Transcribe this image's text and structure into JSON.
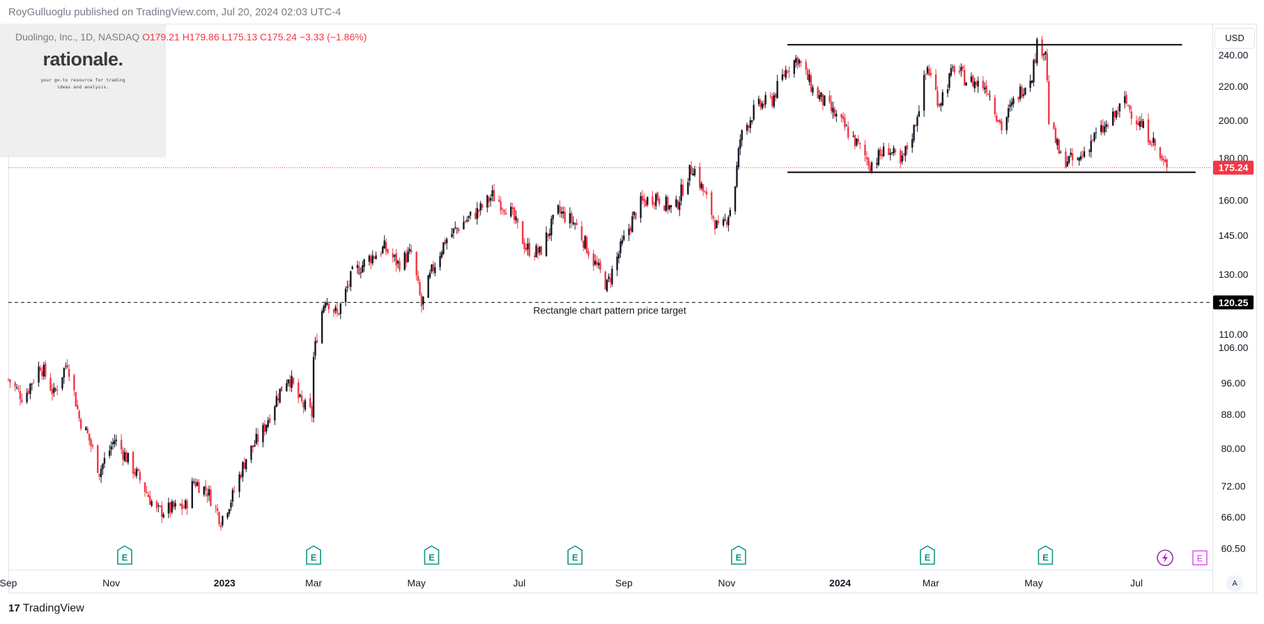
{
  "publisher_line": "RoyGulluoglu published on TradingView.com, Jul 20, 2024 02:03 UTC-4",
  "legend": {
    "symbol": "Duolingo, Inc., 1D, NASDAQ",
    "open": "O179.21",
    "high": "H179.86",
    "low": "L175.13",
    "close": "C175.24",
    "change": "−3.33 (−1.86%)"
  },
  "logo": {
    "word": "rationale.",
    "tagline": "your go-to resource for trading ideas and analysis."
  },
  "currency_button": "USD",
  "auto_scale": "A",
  "brand": {
    "mark": "17",
    "name": "TradingView"
  },
  "colors": {
    "up": "#131722",
    "down": "#f23645",
    "earnings": "#089981",
    "dividend": "#e040fb"
  },
  "chart_data": {
    "type": "candlestick",
    "x_range": [
      "2022-09-01",
      "2024-08-15"
    ],
    "y_range": [
      57,
      262
    ],
    "y_scale": "log",
    "price_axis_ticks": [
      "240.00",
      "220.00",
      "200.00",
      "180.00",
      "160.00",
      "145.00",
      "130.00",
      "110.00",
      "106.00",
      "96.00",
      "88.00",
      "80.00",
      "72.00",
      "66.00",
      "60.50"
    ],
    "time_axis_labels": [
      {
        "label": "Sep",
        "date": "2022-09-01"
      },
      {
        "label": "Nov",
        "date": "2022-11-01"
      },
      {
        "label": "2023",
        "date": "2023-01-01",
        "bold": true
      },
      {
        "label": "Mar",
        "date": "2023-03-01"
      },
      {
        "label": "May",
        "date": "2023-05-01"
      },
      {
        "label": "Jul",
        "date": "2023-07-01"
      },
      {
        "label": "Sep",
        "date": "2023-09-01"
      },
      {
        "label": "Nov",
        "date": "2023-11-01"
      },
      {
        "label": "2024",
        "date": "2024-01-01",
        "bold": true
      },
      {
        "label": "Mar",
        "date": "2024-03-01"
      },
      {
        "label": "May",
        "date": "2024-05-01"
      },
      {
        "label": "Jul",
        "date": "2024-07-01"
      }
    ],
    "price_path": [
      [
        "2022-09-01",
        97
      ],
      [
        "2022-09-10",
        92
      ],
      [
        "2022-09-20",
        101
      ],
      [
        "2022-09-28",
        93
      ],
      [
        "2022-10-06",
        102
      ],
      [
        "2022-10-13",
        87
      ],
      [
        "2022-10-18",
        83
      ],
      [
        "2022-10-25",
        75
      ],
      [
        "2022-11-03",
        82
      ],
      [
        "2022-11-10",
        78
      ],
      [
        "2022-11-20",
        72
      ],
      [
        "2022-11-28",
        67
      ],
      [
        "2022-12-06",
        67.5
      ],
      [
        "2022-12-15",
        68
      ],
      [
        "2022-12-20",
        73
      ],
      [
        "2022-12-28",
        71
      ],
      [
        "2023-01-05",
        65.5
      ],
      [
        "2023-01-12",
        70
      ],
      [
        "2023-01-20",
        78
      ],
      [
        "2023-01-30",
        84
      ],
      [
        "2023-02-08",
        93
      ],
      [
        "2023-02-14",
        98
      ],
      [
        "2023-02-21",
        91
      ],
      [
        "2023-02-28",
        88
      ],
      [
        "2023-03-01",
        103
      ],
      [
        "2023-03-04",
        113
      ],
      [
        "2023-03-08",
        122
      ],
      [
        "2023-03-15",
        116
      ],
      [
        "2023-03-24",
        130
      ],
      [
        "2023-04-03",
        136
      ],
      [
        "2023-04-12",
        140
      ],
      [
        "2023-04-20",
        134
      ],
      [
        "2023-04-28",
        138
      ],
      [
        "2023-05-04",
        119
      ],
      [
        "2023-05-10",
        131
      ],
      [
        "2023-05-18",
        143
      ],
      [
        "2023-05-28",
        150
      ],
      [
        "2023-06-08",
        156
      ],
      [
        "2023-06-15",
        162
      ],
      [
        "2023-06-25",
        156
      ],
      [
        "2023-07-05",
        140
      ],
      [
        "2023-07-13",
        138
      ],
      [
        "2023-07-24",
        155
      ],
      [
        "2023-08-03",
        150
      ],
      [
        "2023-08-14",
        135
      ],
      [
        "2023-08-22",
        126
      ],
      [
        "2023-09-01",
        143
      ],
      [
        "2023-09-10",
        158
      ],
      [
        "2023-09-20",
        162
      ],
      [
        "2023-10-01",
        155
      ],
      [
        "2023-10-08",
        170
      ],
      [
        "2023-10-12",
        176
      ],
      [
        "2023-10-18",
        164
      ],
      [
        "2023-10-28",
        145
      ],
      [
        "2023-11-05",
        160
      ],
      [
        "2023-11-09",
        190
      ],
      [
        "2023-11-18",
        207
      ],
      [
        "2023-11-28",
        212
      ],
      [
        "2023-12-07",
        232
      ],
      [
        "2023-12-13",
        238
      ],
      [
        "2023-12-22",
        218
      ],
      [
        "2024-01-04",
        203
      ],
      [
        "2024-01-15",
        190
      ],
      [
        "2024-01-25",
        177
      ],
      [
        "2024-02-05",
        185
      ],
      [
        "2024-02-12",
        176
      ],
      [
        "2024-02-20",
        195
      ],
      [
        "2024-02-28",
        232
      ],
      [
        "2024-03-06",
        210
      ],
      [
        "2024-03-15",
        232
      ],
      [
        "2024-03-22",
        224
      ],
      [
        "2024-04-03",
        220
      ],
      [
        "2024-04-12",
        196
      ],
      [
        "2024-04-20",
        212
      ],
      [
        "2024-04-30",
        228
      ],
      [
        "2024-05-03",
        246
      ],
      [
        "2024-05-08",
        244
      ],
      [
        "2024-05-10",
        200
      ],
      [
        "2024-05-17",
        180
      ],
      [
        "2024-05-27",
        178
      ],
      [
        "2024-06-05",
        190
      ],
      [
        "2024-06-15",
        198
      ],
      [
        "2024-06-24",
        211
      ],
      [
        "2024-07-03",
        198
      ],
      [
        "2024-07-10",
        190
      ],
      [
        "2024-07-16",
        178
      ],
      [
        "2024-07-19",
        175.24
      ]
    ],
    "drawings": [
      {
        "kind": "horizontal-segment",
        "price": 247,
        "from": "2023-12-07",
        "to": "2024-07-28",
        "color": "#000000",
        "style": "solid"
      },
      {
        "kind": "horizontal-segment",
        "price": 173,
        "from": "2023-12-07",
        "to": "2024-08-05",
        "color": "#000000",
        "style": "solid"
      },
      {
        "kind": "horizontal-line",
        "price": 120.25,
        "color": "#000000",
        "style": "dashed",
        "text": "Rectangle chart pattern price target"
      }
    ],
    "last_price": {
      "price": 175.24,
      "label": "175.24",
      "color": "#f23645"
    },
    "target_price": {
      "price": 120.25,
      "label": "120.25",
      "color": "#000000"
    },
    "earnings_markers": [
      "2022-11-09",
      "2023-03-01",
      "2023-05-10",
      "2023-08-03",
      "2023-11-08",
      "2024-02-28",
      "2024-05-08"
    ],
    "earnings_marker_label": "E",
    "future_events": [
      {
        "type": "dividend",
        "date": "2024-08-05",
        "label": "E"
      }
    ]
  }
}
